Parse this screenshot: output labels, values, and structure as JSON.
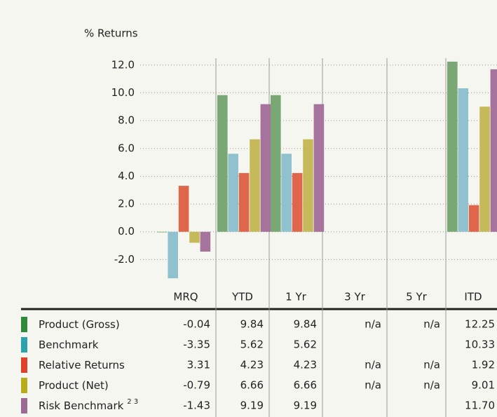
{
  "chart_data": {
    "type": "bar",
    "y_label": "% Returns",
    "categories": [
      "MRQ",
      "YTD",
      "1 Yr",
      "3 Yr",
      "5 Yr",
      "ITD"
    ],
    "ylim": [
      -4,
      12.5
    ],
    "yticks": [
      {
        "value": 12,
        "label": "12.0"
      },
      {
        "value": 10,
        "label": "10.0"
      },
      {
        "value": 8,
        "label": "8.0"
      },
      {
        "value": 6,
        "label": "6.0"
      },
      {
        "value": 4,
        "label": "4.0"
      },
      {
        "value": 2,
        "label": "2.0"
      },
      {
        "value": 0,
        "label": "0.0"
      },
      {
        "value": -2,
        "label": "-2.0"
      }
    ],
    "grid": true,
    "series": [
      {
        "name": "Product (Gross)",
        "color": "#7aa874",
        "swatch": "#2e8b3a",
        "values": [
          -0.04,
          9.84,
          9.84,
          null,
          null,
          12.25
        ],
        "value_labels": [
          "-0.04",
          "9.84",
          "9.84",
          "n/a",
          "n/a",
          "12.25"
        ]
      },
      {
        "name": "Benchmark",
        "color": "#8fc1cf",
        "swatch": "#2aa3ad",
        "values": [
          -3.35,
          5.62,
          5.62,
          null,
          null,
          10.33
        ],
        "value_labels": [
          "-3.35",
          "5.62",
          "5.62",
          null,
          null,
          "10.33"
        ]
      },
      {
        "name": "Relative Returns",
        "color": "#e0664b",
        "swatch": "#e0412a",
        "values": [
          3.31,
          4.23,
          4.23,
          null,
          null,
          1.92
        ],
        "value_labels": [
          "3.31",
          "4.23",
          "4.23",
          "n/a",
          "n/a",
          "1.92"
        ]
      },
      {
        "name": "Product (Net)",
        "color": "#c6b95a",
        "swatch": "#b8ac1a",
        "values": [
          -0.79,
          6.66,
          6.66,
          null,
          null,
          9.01
        ],
        "value_labels": [
          "-0.79",
          "6.66",
          "6.66",
          "n/a",
          "n/a",
          "9.01"
        ]
      },
      {
        "name": "Risk Benchmark",
        "superscript": "2 3",
        "color": "#a5739c",
        "swatch": "#9c6a94",
        "values": [
          -1.43,
          9.19,
          9.19,
          null,
          null,
          11.7
        ],
        "value_labels": [
          "-1.43",
          "9.19",
          "9.19",
          null,
          null,
          "11.70"
        ]
      }
    ]
  }
}
